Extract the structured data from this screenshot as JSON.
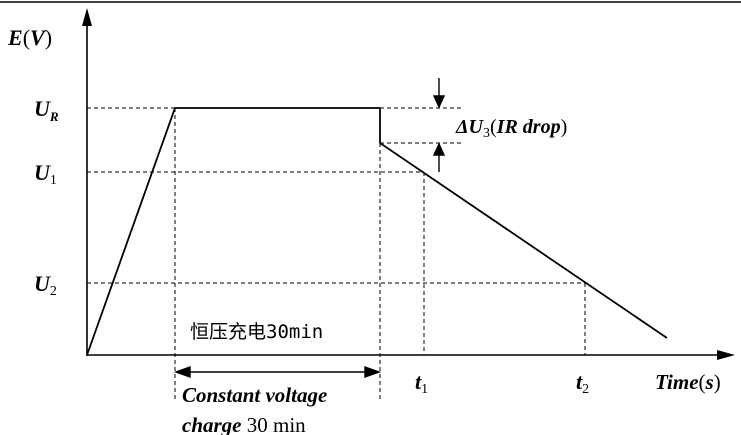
{
  "diagram": {
    "y_axis_label": {
      "main": "E",
      "paren_open": "(",
      "unit": "V",
      "paren_close": ")"
    },
    "x_axis_label": {
      "main": "Time",
      "paren_open": "(",
      "unit": "s",
      "paren_close": ")"
    },
    "y_levels": {
      "ur": {
        "main": "U",
        "sub": "R"
      },
      "u1": {
        "main": "U",
        "sub": "1"
      },
      "u2": {
        "main": "U",
        "sub": "2"
      }
    },
    "x_marks": {
      "t1": {
        "main": "t",
        "sub": "1"
      },
      "t2": {
        "main": "t",
        "sub": "2"
      }
    },
    "ir_drop": {
      "delta": "ΔU",
      "sub": "3",
      "paren_open": "(",
      "text": "IR drop",
      "paren_close": ")"
    },
    "cv_label_cn": "恒压充电30min",
    "cv_label_en_line1": "Constant voltage",
    "cv_label_en_line2_bold": "charge",
    "cv_label_en_line2_rest": " 30 min"
  },
  "colors": {
    "line": "#000000",
    "background": "#ffffff"
  }
}
